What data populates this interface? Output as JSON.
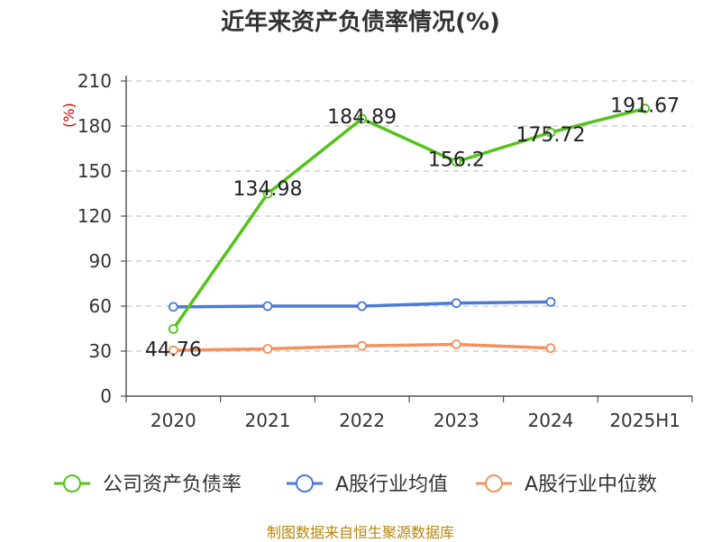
{
  "title": "近年来资产负债率情况(%)",
  "source": "制图数据来自恒生聚源数据库",
  "chart_data": {
    "type": "line",
    "title": "近年来资产负债率情况(%)",
    "ylabel": "(%)",
    "ylim": [
      0,
      210
    ],
    "yticks": [
      0,
      30,
      60,
      90,
      120,
      150,
      180,
      210
    ],
    "categories": [
      "2020",
      "2021",
      "2022",
      "2023",
      "2024",
      "2025H1"
    ],
    "grid": true,
    "legend_position": "bottom",
    "series": [
      {
        "name": "公司资产负债率",
        "color": "#52c41a",
        "values": [
          44.76,
          134.98,
          184.89,
          156.2,
          175.72,
          191.67
        ],
        "labels": [
          "44.76",
          "134.98",
          "184.89",
          "156.2",
          "175.72",
          "191.67"
        ]
      },
      {
        "name": "A股行业均值",
        "color": "#4a7bd6",
        "values": [
          59.5,
          60.0,
          60.0,
          62.0,
          62.8,
          null
        ]
      },
      {
        "name": "A股行业中位数",
        "color": "#f4915e",
        "values": [
          30.5,
          31.5,
          33.5,
          34.5,
          32.0,
          null
        ]
      }
    ]
  }
}
